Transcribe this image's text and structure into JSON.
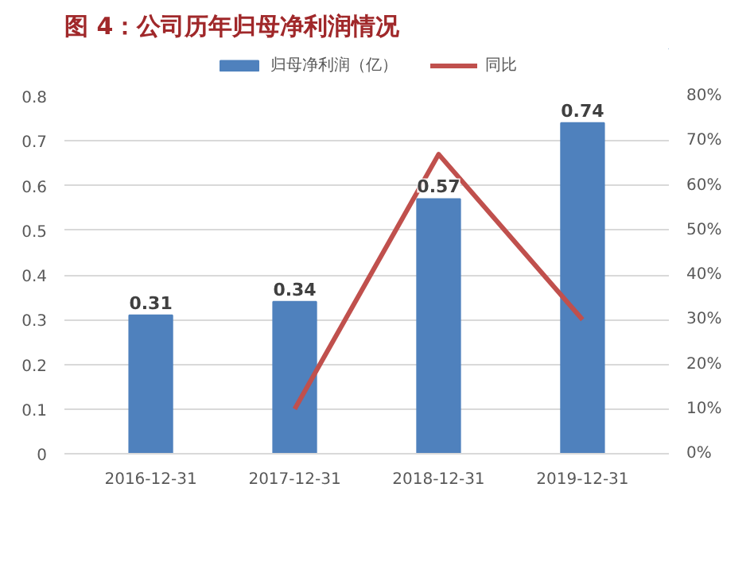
{
  "chart_data": {
    "type": "bar",
    "title": "图 4：公司历年归母净利润情况",
    "categories": [
      "2016-12-31",
      "2017-12-31",
      "2018-12-31",
      "2019-12-31"
    ],
    "series": [
      {
        "name": "归母净利润（亿）",
        "color": "#4f81bd",
        "values": [
          0.31,
          0.34,
          0.57,
          0.74
        ],
        "value_labels": [
          "0.31",
          "0.34",
          "0.57",
          "0.74"
        ]
      },
      {
        "name": "同比",
        "type": "line",
        "axis": "y2",
        "color": "#c0504d",
        "values": [
          null,
          10,
          67,
          30
        ]
      }
    ],
    "ylim": [
      0,
      0.8
    ],
    "yticks": [
      0,
      0.1,
      0.2,
      0.3,
      0.4,
      0.5,
      0.6,
      0.7,
      0.8
    ],
    "y2lim": [
      0,
      80
    ],
    "y2ticks": [
      {
        "value": 0,
        "label": "0%"
      },
      {
        "value": 10,
        "label": "10%"
      },
      {
        "value": 20,
        "label": "20%"
      },
      {
        "value": 30,
        "label": "30%"
      },
      {
        "value": 40,
        "label": "40%"
      },
      {
        "value": 50,
        "label": "50%"
      },
      {
        "value": 60,
        "label": "60%"
      },
      {
        "value": 70,
        "label": "70%"
      },
      {
        "value": 80,
        "label": "80%"
      }
    ],
    "grid": "y",
    "legend": "top",
    "marker": "none"
  }
}
